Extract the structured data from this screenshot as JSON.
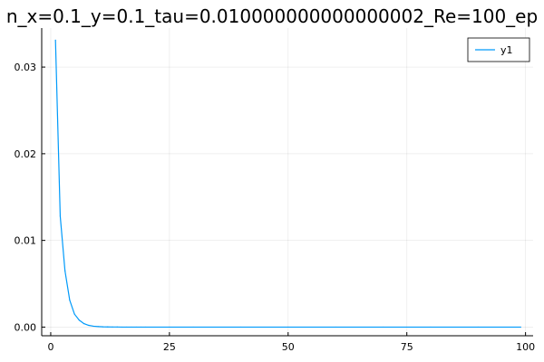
{
  "chart_data": {
    "type": "line",
    "title": "n_x=0.1_y=0.1_tau=0.010000000000000002_Re=100_ep",
    "xlabel": "",
    "ylabel": "",
    "xlim": [
      -1.9,
      101.6
    ],
    "ylim": [
      -0.001,
      0.0345
    ],
    "x_ticks": [
      0,
      25,
      50,
      75,
      100
    ],
    "x_tick_labels": [
      "0",
      "25",
      "50",
      "75",
      "100"
    ],
    "y_ticks": [
      0.0,
      0.01,
      0.02,
      0.03
    ],
    "y_tick_labels": [
      "0.00",
      "0.01",
      "0.02",
      "0.03"
    ],
    "grid": true,
    "legend": "top-right",
    "series": [
      {
        "name": "y1",
        "color": "#009AFA",
        "x": [
          1,
          2,
          3,
          4,
          5,
          6,
          7,
          8,
          9,
          10,
          11,
          12,
          13,
          14,
          15,
          16,
          17,
          18,
          19,
          20,
          25,
          30,
          40,
          50,
          60,
          70,
          80,
          90,
          99
        ],
        "y": [
          0.0331,
          0.0128,
          0.0065,
          0.0031,
          0.0015,
          0.0008,
          0.0004,
          0.0002,
          0.0001,
          6e-05,
          3e-05,
          2e-05,
          1e-05,
          1e-05,
          0,
          0,
          0,
          0,
          0,
          0,
          0,
          0,
          0,
          0,
          0,
          0,
          0,
          0,
          0
        ]
      }
    ]
  }
}
